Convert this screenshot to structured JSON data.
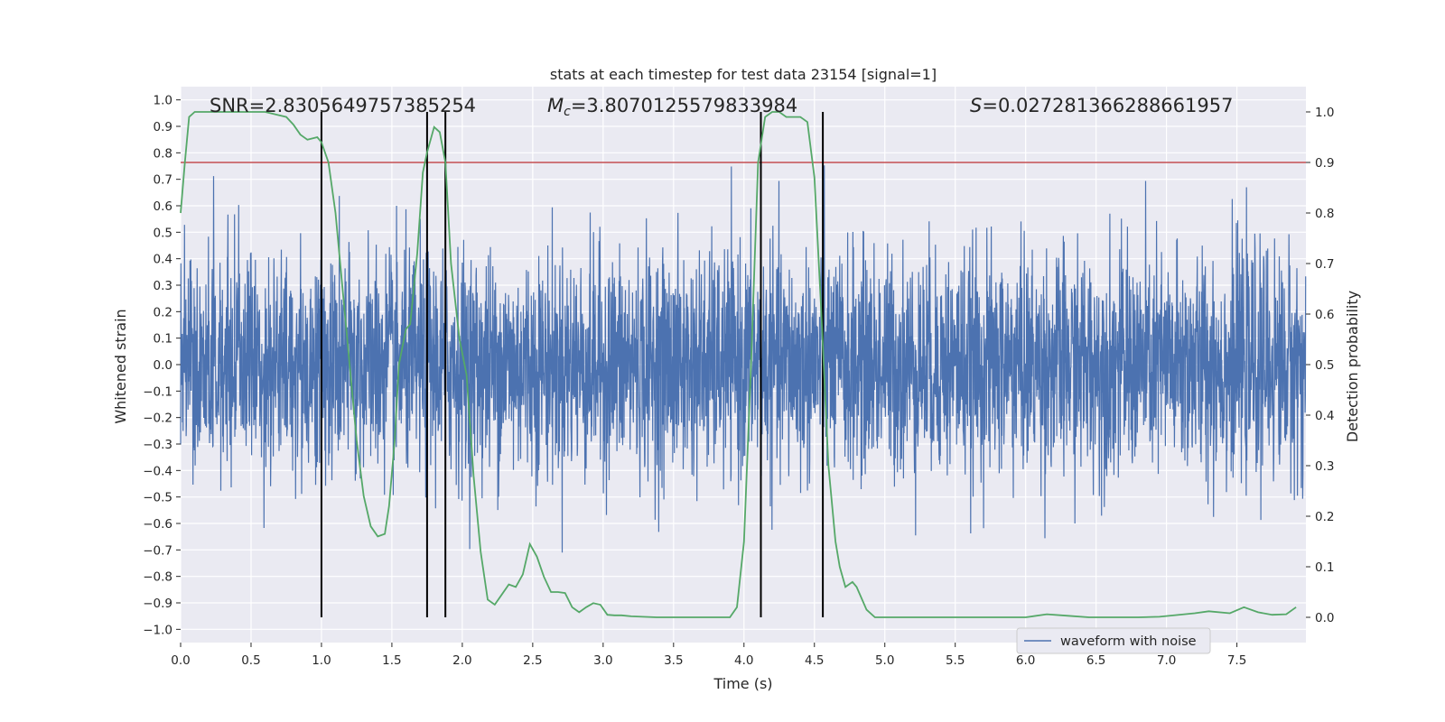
{
  "chart_data": {
    "type": "line",
    "title": "stats at each timestep for test data 23154 [signal=1]",
    "xlabel": "Time (s)",
    "ylabel": "Whitened strain",
    "y2label": "Detection probability",
    "xlim": [
      0.0,
      7.99
    ],
    "ylim": [
      -1.05,
      1.05
    ],
    "y2lim": [
      -0.05,
      1.05
    ],
    "xticks": [
      0.0,
      0.5,
      1.0,
      1.5,
      2.0,
      2.5,
      3.0,
      3.5,
      4.0,
      4.5,
      5.0,
      5.5,
      6.0,
      6.5,
      7.0,
      7.5
    ],
    "xtick_labels": [
      "0.0",
      "0.5",
      "1.0",
      "1.5",
      "2.0",
      "2.5",
      "3.0",
      "3.5",
      "4.0",
      "4.5",
      "5.0",
      "5.5",
      "6.0",
      "6.5",
      "7.0",
      "7.5"
    ],
    "yticks": [
      1.0,
      0.9,
      0.8,
      0.7,
      0.6,
      0.5,
      0.4,
      0.3,
      0.2,
      0.1,
      0.0,
      -0.1,
      -0.2,
      -0.3,
      -0.4,
      -0.5,
      -0.6,
      -0.7,
      -0.8,
      -0.9,
      -1.0
    ],
    "ytick_labels": [
      "1.0",
      "0.9",
      "0.8",
      "0.7",
      "0.6",
      "0.5",
      "0.4",
      "0.3",
      "0.2",
      "0.1",
      "0.0",
      "−0.1",
      "−0.2",
      "−0.3",
      "−0.4",
      "−0.5",
      "−0.6",
      "−0.7",
      "−0.8",
      "−0.9",
      "−1.0"
    ],
    "y2ticks": [
      1.0,
      0.9,
      0.8,
      0.7,
      0.6,
      0.5,
      0.4,
      0.3,
      0.2,
      0.1,
      0.0
    ],
    "y2tick_labels": [
      "1.0",
      "0.9",
      "0.8",
      "0.7",
      "0.6",
      "0.5",
      "0.4",
      "0.3",
      "0.2",
      "0.1",
      "0.0"
    ],
    "grid": true,
    "legend": {
      "label": "waveform with noise",
      "placement": "lower-right"
    },
    "annotations": {
      "snr": {
        "label": "SNR=2.8305649757385254"
      },
      "mc": {
        "prefix": "M",
        "subscript": "c",
        "suffix": "=3.8070125579833984"
      },
      "s": {
        "prefix": "S",
        "suffix": "=0.027281366288661957"
      }
    },
    "threshold": {
      "y2": 0.9,
      "color": "#c44e52"
    },
    "vertical_lines_x": [
      1.0,
      1.75,
      1.88,
      4.12,
      4.56
    ],
    "vertical_lines_y2_range": [
      0.0,
      1.0
    ],
    "series": [
      {
        "name": "waveform with noise",
        "axis": "left",
        "color": "#4c72b0",
        "kind": "noise-trace",
        "sample_rate_hz": 512,
        "duration_s": 8.0,
        "std": 0.21,
        "peak_range": [
          -0.84,
          1.0
        ]
      },
      {
        "name": "detection probability",
        "axis": "right",
        "color": "#55a868",
        "x": [
          0.0,
          0.03,
          0.06,
          0.1,
          0.15,
          0.25,
          0.4,
          0.6,
          0.75,
          0.8,
          0.85,
          0.9,
          0.97,
          1.0,
          1.05,
          1.1,
          1.15,
          1.2,
          1.25,
          1.3,
          1.35,
          1.4,
          1.45,
          1.48,
          1.52,
          1.55,
          1.6,
          1.63,
          1.68,
          1.72,
          1.75,
          1.8,
          1.84,
          1.88,
          1.92,
          1.98,
          2.03,
          2.08,
          2.13,
          2.18,
          2.23,
          2.28,
          2.33,
          2.38,
          2.43,
          2.48,
          2.53,
          2.58,
          2.63,
          2.68,
          2.73,
          2.78,
          2.83,
          2.88,
          2.93,
          2.98,
          3.03,
          3.08,
          3.13,
          3.2,
          3.28,
          3.38,
          3.5,
          3.65,
          3.8,
          3.9,
          3.95,
          4.0,
          4.05,
          4.1,
          4.15,
          4.2,
          4.25,
          4.3,
          4.35,
          4.4,
          4.45,
          4.5,
          4.55,
          4.6,
          4.65,
          4.68,
          4.72,
          4.77,
          4.8,
          4.87,
          4.93,
          5.0,
          5.2,
          5.5,
          5.8,
          6.0,
          6.15,
          6.3,
          6.45,
          6.6,
          6.8,
          6.95,
          7.2,
          7.3,
          7.45,
          7.55,
          7.65,
          7.75,
          7.85,
          7.92
        ],
        "values": [
          0.8,
          0.9,
          0.99,
          1.0,
          1.0,
          1.0,
          1.0,
          1.0,
          0.99,
          0.975,
          0.955,
          0.945,
          0.95,
          0.94,
          0.9,
          0.8,
          0.65,
          0.5,
          0.35,
          0.24,
          0.18,
          0.16,
          0.165,
          0.22,
          0.35,
          0.5,
          0.57,
          0.58,
          0.72,
          0.88,
          0.92,
          0.97,
          0.96,
          0.9,
          0.7,
          0.55,
          0.48,
          0.28,
          0.13,
          0.035,
          0.025,
          0.045,
          0.065,
          0.06,
          0.085,
          0.145,
          0.12,
          0.08,
          0.05,
          0.05,
          0.048,
          0.02,
          0.01,
          0.02,
          0.028,
          0.025,
          0.005,
          0.004,
          0.004,
          0.002,
          0.001,
          0.0,
          0.0,
          0.0,
          0.0,
          0.0,
          0.02,
          0.15,
          0.5,
          0.9,
          0.99,
          1.0,
          1.0,
          0.99,
          0.99,
          0.99,
          0.98,
          0.87,
          0.6,
          0.3,
          0.15,
          0.1,
          0.06,
          0.07,
          0.06,
          0.015,
          0.0,
          0.0,
          0.0,
          0.0,
          0.0,
          0.0,
          0.006,
          0.003,
          0.0,
          0.0,
          0.0,
          0.001,
          0.008,
          0.012,
          0.008,
          0.02,
          0.01,
          0.005,
          0.006,
          0.02
        ]
      }
    ]
  }
}
